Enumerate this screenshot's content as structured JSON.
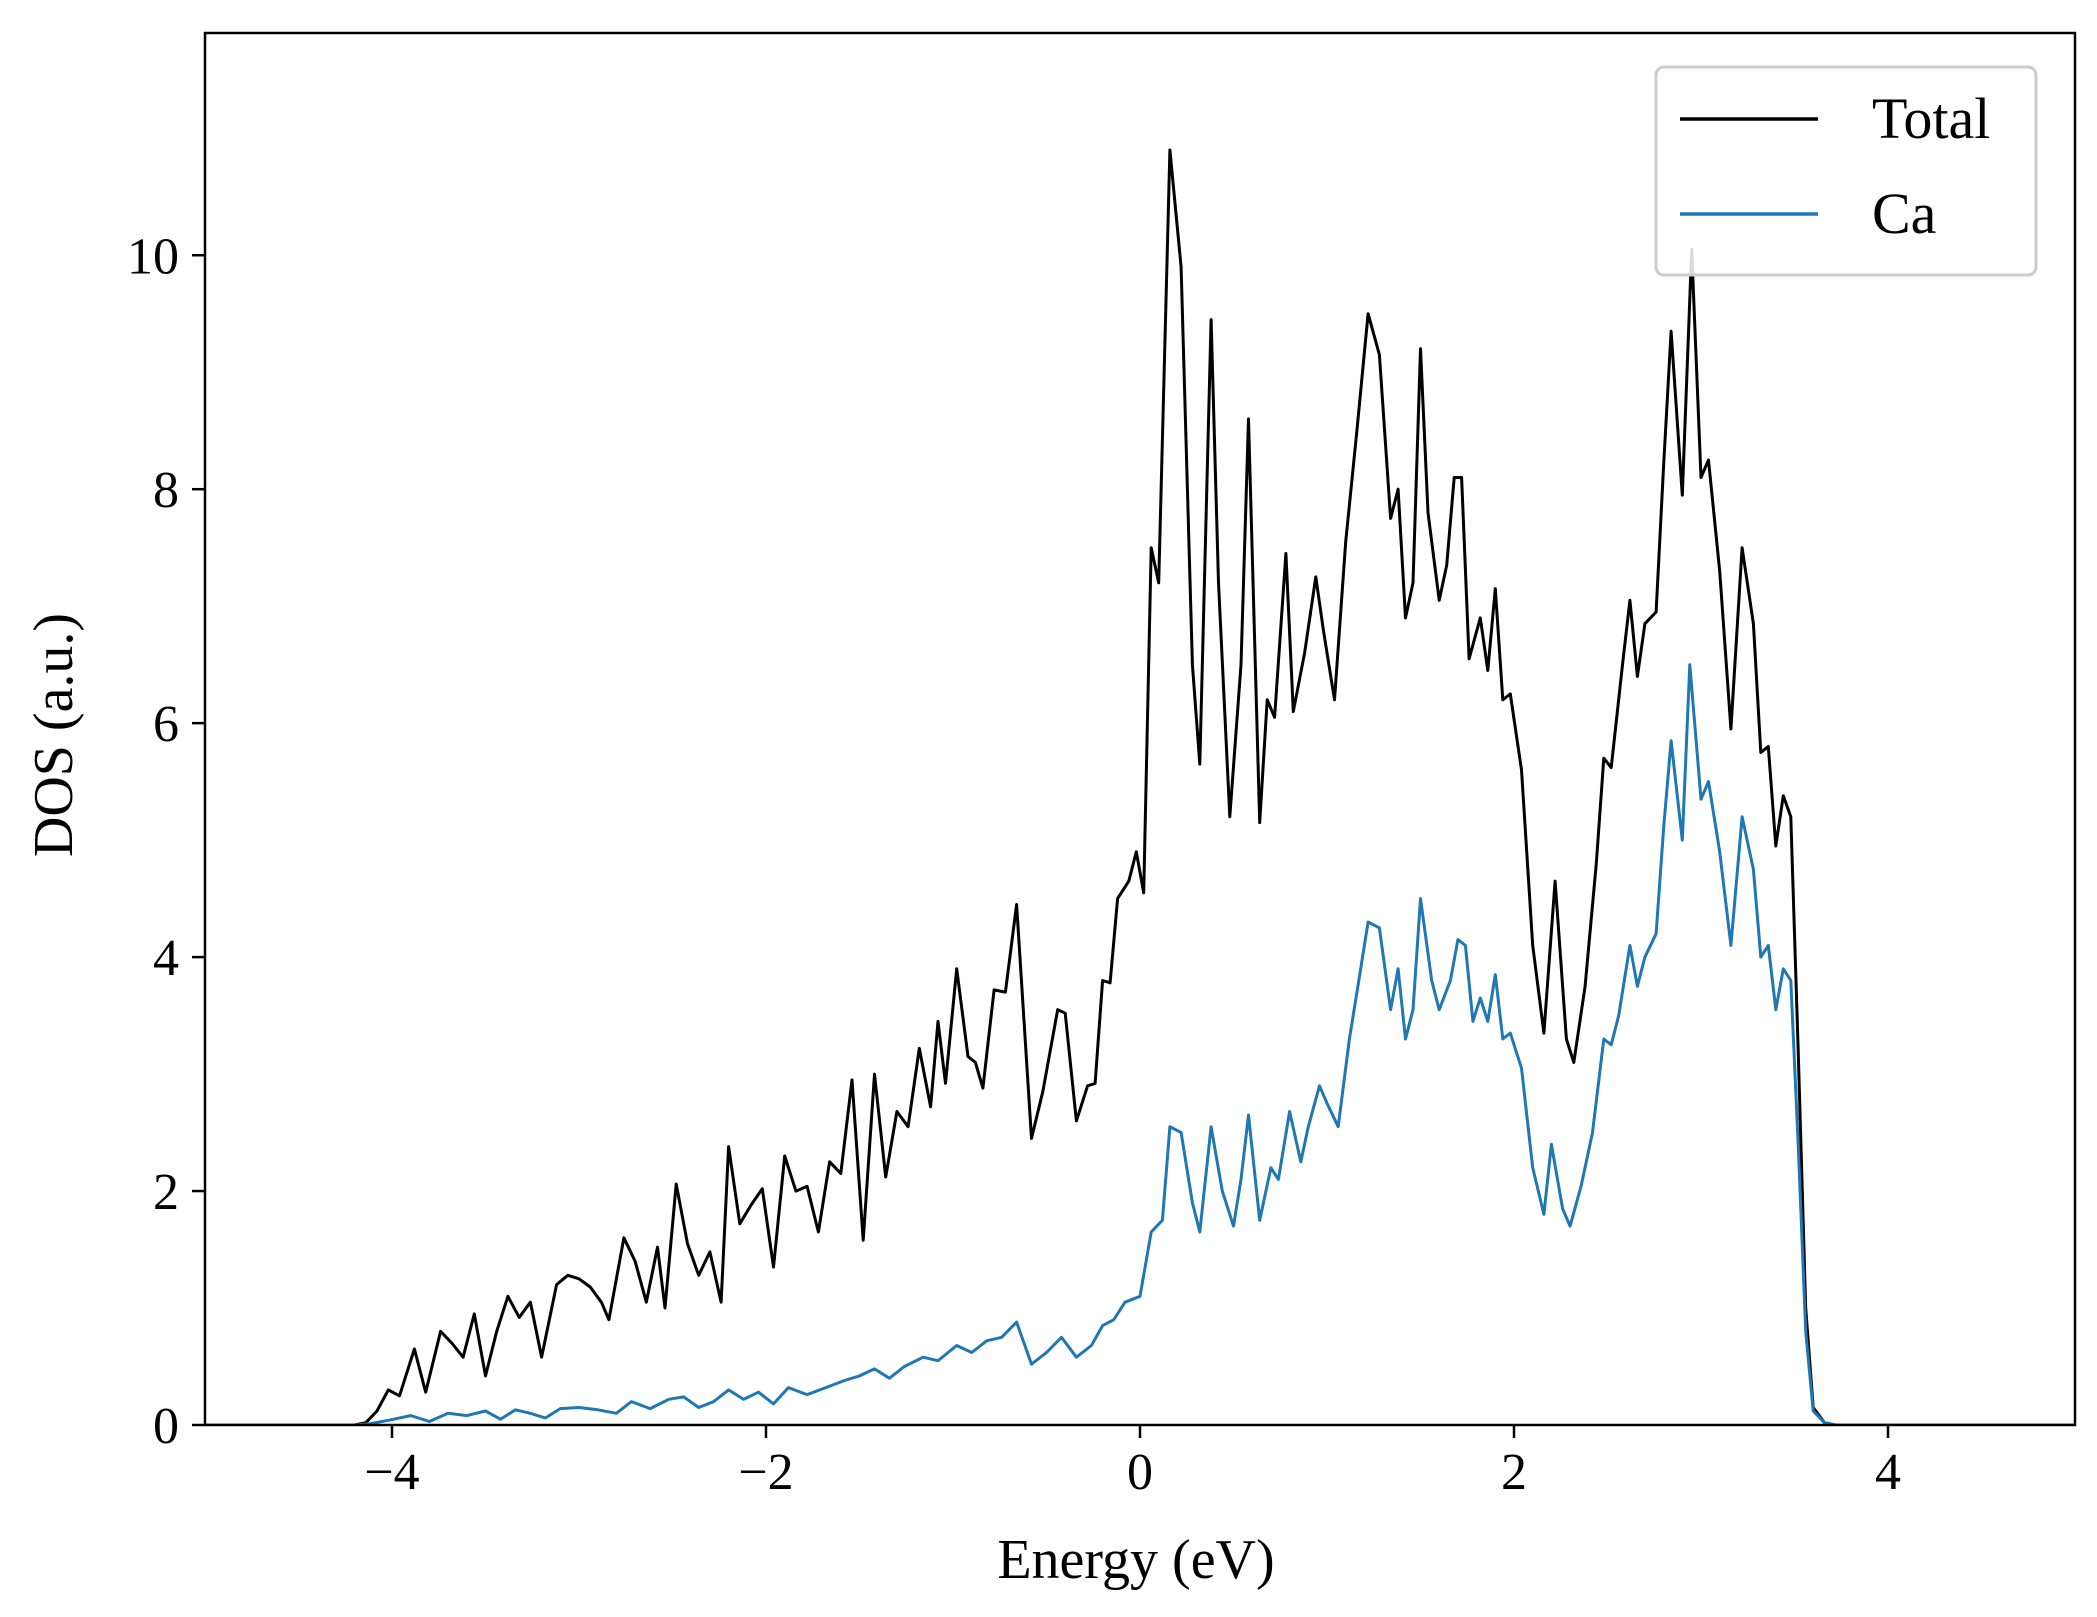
{
  "chart_data": {
    "type": "line",
    "xlabel": "Energy (eV)",
    "ylabel": "DOS (a.u.)",
    "xlim": [
      -5,
      5
    ],
    "ylim": [
      0,
      11.9
    ],
    "x_ticks": [
      -4,
      -2,
      0,
      2,
      4
    ],
    "x_tick_labels": [
      "−4",
      "−2",
      "0",
      "2",
      "4"
    ],
    "y_ticks": [
      0,
      2,
      4,
      6,
      8,
      10
    ],
    "y_tick_labels": [
      "0",
      "2",
      "4",
      "6",
      "8",
      "10"
    ],
    "grid": false,
    "legend_position": "top-right",
    "series": [
      {
        "name": "Total",
        "color": "#000000",
        "points": [
          [
            -5.0,
            0
          ],
          [
            -4.2,
            0
          ],
          [
            -4.14,
            0.02
          ],
          [
            -4.08,
            0.12
          ],
          [
            -4.02,
            0.3
          ],
          [
            -3.96,
            0.25
          ],
          [
            -3.88,
            0.65
          ],
          [
            -3.82,
            0.28
          ],
          [
            -3.74,
            0.8
          ],
          [
            -3.68,
            0.7
          ],
          [
            -3.62,
            0.58
          ],
          [
            -3.56,
            0.95
          ],
          [
            -3.5,
            0.42
          ],
          [
            -3.44,
            0.8
          ],
          [
            -3.38,
            1.1
          ],
          [
            -3.32,
            0.92
          ],
          [
            -3.26,
            1.05
          ],
          [
            -3.2,
            0.58
          ],
          [
            -3.12,
            1.2
          ],
          [
            -3.06,
            1.28
          ],
          [
            -3.0,
            1.25
          ],
          [
            -2.94,
            1.18
          ],
          [
            -2.88,
            1.05
          ],
          [
            -2.84,
            0.9
          ],
          [
            -2.76,
            1.6
          ],
          [
            -2.7,
            1.4
          ],
          [
            -2.64,
            1.05
          ],
          [
            -2.58,
            1.52
          ],
          [
            -2.54,
            1.0
          ],
          [
            -2.48,
            2.06
          ],
          [
            -2.42,
            1.55
          ],
          [
            -2.36,
            1.28
          ],
          [
            -2.3,
            1.48
          ],
          [
            -2.24,
            1.05
          ],
          [
            -2.2,
            2.38
          ],
          [
            -2.14,
            1.72
          ],
          [
            -2.08,
            1.88
          ],
          [
            -2.02,
            2.02
          ],
          [
            -1.96,
            1.35
          ],
          [
            -1.9,
            2.3
          ],
          [
            -1.84,
            2.0
          ],
          [
            -1.78,
            2.04
          ],
          [
            -1.72,
            1.65
          ],
          [
            -1.66,
            2.25
          ],
          [
            -1.6,
            2.15
          ],
          [
            -1.54,
            2.95
          ],
          [
            -1.48,
            1.58
          ],
          [
            -1.42,
            3.0
          ],
          [
            -1.36,
            2.12
          ],
          [
            -1.3,
            2.68
          ],
          [
            -1.24,
            2.55
          ],
          [
            -1.18,
            3.22
          ],
          [
            -1.12,
            2.72
          ],
          [
            -1.08,
            3.45
          ],
          [
            -1.04,
            2.92
          ],
          [
            -0.98,
            3.9
          ],
          [
            -0.92,
            3.15
          ],
          [
            -0.88,
            3.1
          ],
          [
            -0.84,
            2.88
          ],
          [
            -0.78,
            3.72
          ],
          [
            -0.72,
            3.7
          ],
          [
            -0.66,
            4.45
          ],
          [
            -0.58,
            2.45
          ],
          [
            -0.52,
            2.85
          ],
          [
            -0.44,
            3.55
          ],
          [
            -0.4,
            3.52
          ],
          [
            -0.34,
            2.6
          ],
          [
            -0.28,
            2.9
          ],
          [
            -0.24,
            2.92
          ],
          [
            -0.2,
            3.8
          ],
          [
            -0.16,
            3.78
          ],
          [
            -0.12,
            4.5
          ],
          [
            -0.06,
            4.65
          ],
          [
            -0.02,
            4.9
          ],
          [
            0.02,
            4.55
          ],
          [
            0.06,
            7.5
          ],
          [
            0.1,
            7.2
          ],
          [
            0.16,
            10.9
          ],
          [
            0.22,
            9.9
          ],
          [
            0.28,
            6.5
          ],
          [
            0.32,
            5.65
          ],
          [
            0.38,
            9.45
          ],
          [
            0.42,
            7.2
          ],
          [
            0.48,
            5.2
          ],
          [
            0.54,
            6.5
          ],
          [
            0.58,
            8.6
          ],
          [
            0.64,
            5.15
          ],
          [
            0.68,
            6.2
          ],
          [
            0.72,
            6.05
          ],
          [
            0.78,
            7.45
          ],
          [
            0.82,
            6.1
          ],
          [
            0.88,
            6.6
          ],
          [
            0.94,
            7.25
          ],
          [
            0.98,
            6.8
          ],
          [
            1.04,
            6.2
          ],
          [
            1.1,
            7.55
          ],
          [
            1.16,
            8.5
          ],
          [
            1.22,
            9.5
          ],
          [
            1.28,
            9.15
          ],
          [
            1.34,
            7.75
          ],
          [
            1.38,
            8.0
          ],
          [
            1.42,
            6.9
          ],
          [
            1.46,
            7.2
          ],
          [
            1.5,
            9.2
          ],
          [
            1.54,
            7.8
          ],
          [
            1.6,
            7.05
          ],
          [
            1.64,
            7.35
          ],
          [
            1.68,
            8.1
          ],
          [
            1.72,
            8.1
          ],
          [
            1.76,
            6.55
          ],
          [
            1.82,
            6.9
          ],
          [
            1.86,
            6.45
          ],
          [
            1.9,
            7.15
          ],
          [
            1.94,
            6.2
          ],
          [
            1.98,
            6.25
          ],
          [
            2.04,
            5.6
          ],
          [
            2.1,
            4.1
          ],
          [
            2.16,
            3.35
          ],
          [
            2.22,
            4.65
          ],
          [
            2.28,
            3.3
          ],
          [
            2.32,
            3.1
          ],
          [
            2.38,
            3.75
          ],
          [
            2.44,
            4.8
          ],
          [
            2.48,
            5.7
          ],
          [
            2.52,
            5.62
          ],
          [
            2.58,
            6.5
          ],
          [
            2.62,
            7.05
          ],
          [
            2.66,
            6.4
          ],
          [
            2.7,
            6.85
          ],
          [
            2.76,
            6.95
          ],
          [
            2.8,
            8.2
          ],
          [
            2.84,
            9.35
          ],
          [
            2.9,
            7.95
          ],
          [
            2.95,
            10.05
          ],
          [
            3.0,
            8.1
          ],
          [
            3.04,
            8.25
          ],
          [
            3.1,
            7.3
          ],
          [
            3.16,
            5.95
          ],
          [
            3.22,
            7.5
          ],
          [
            3.28,
            6.85
          ],
          [
            3.32,
            5.75
          ],
          [
            3.36,
            5.8
          ],
          [
            3.4,
            4.95
          ],
          [
            3.44,
            5.38
          ],
          [
            3.48,
            5.2
          ],
          [
            3.52,
            3.2
          ],
          [
            3.56,
            1.0
          ],
          [
            3.6,
            0.15
          ],
          [
            3.66,
            0.02
          ],
          [
            3.72,
            0
          ],
          [
            5.0,
            0
          ]
        ]
      },
      {
        "name": "Ca",
        "color": "#1f77b4",
        "points": [
          [
            -5.0,
            0
          ],
          [
            -4.2,
            0
          ],
          [
            -4.12,
            0.01
          ],
          [
            -4.02,
            0.04
          ],
          [
            -3.9,
            0.08
          ],
          [
            -3.8,
            0.03
          ],
          [
            -3.7,
            0.1
          ],
          [
            -3.6,
            0.08
          ],
          [
            -3.5,
            0.12
          ],
          [
            -3.42,
            0.05
          ],
          [
            -3.34,
            0.13
          ],
          [
            -3.26,
            0.1
          ],
          [
            -3.18,
            0.06
          ],
          [
            -3.1,
            0.14
          ],
          [
            -3.0,
            0.15
          ],
          [
            -2.9,
            0.13
          ],
          [
            -2.8,
            0.1
          ],
          [
            -2.72,
            0.2
          ],
          [
            -2.62,
            0.14
          ],
          [
            -2.52,
            0.22
          ],
          [
            -2.44,
            0.24
          ],
          [
            -2.36,
            0.15
          ],
          [
            -2.28,
            0.2
          ],
          [
            -2.2,
            0.3
          ],
          [
            -2.12,
            0.22
          ],
          [
            -2.04,
            0.28
          ],
          [
            -1.96,
            0.18
          ],
          [
            -1.88,
            0.32
          ],
          [
            -1.78,
            0.26
          ],
          [
            -1.68,
            0.32
          ],
          [
            -1.58,
            0.38
          ],
          [
            -1.5,
            0.42
          ],
          [
            -1.42,
            0.48
          ],
          [
            -1.34,
            0.4
          ],
          [
            -1.26,
            0.5
          ],
          [
            -1.16,
            0.58
          ],
          [
            -1.08,
            0.55
          ],
          [
            -0.98,
            0.68
          ],
          [
            -0.9,
            0.62
          ],
          [
            -0.82,
            0.72
          ],
          [
            -0.74,
            0.75
          ],
          [
            -0.66,
            0.88
          ],
          [
            -0.58,
            0.52
          ],
          [
            -0.5,
            0.62
          ],
          [
            -0.42,
            0.75
          ],
          [
            -0.34,
            0.58
          ],
          [
            -0.26,
            0.68
          ],
          [
            -0.2,
            0.85
          ],
          [
            -0.14,
            0.9
          ],
          [
            -0.08,
            1.05
          ],
          [
            0.0,
            1.1
          ],
          [
            0.06,
            1.65
          ],
          [
            0.12,
            1.75
          ],
          [
            0.16,
            2.55
          ],
          [
            0.22,
            2.5
          ],
          [
            0.28,
            1.9
          ],
          [
            0.32,
            1.65
          ],
          [
            0.38,
            2.55
          ],
          [
            0.44,
            2.0
          ],
          [
            0.5,
            1.7
          ],
          [
            0.54,
            2.1
          ],
          [
            0.58,
            2.65
          ],
          [
            0.64,
            1.75
          ],
          [
            0.7,
            2.2
          ],
          [
            0.74,
            2.1
          ],
          [
            0.8,
            2.68
          ],
          [
            0.86,
            2.25
          ],
          [
            0.9,
            2.55
          ],
          [
            0.96,
            2.9
          ],
          [
            1.0,
            2.75
          ],
          [
            1.06,
            2.55
          ],
          [
            1.12,
            3.3
          ],
          [
            1.18,
            3.9
          ],
          [
            1.22,
            4.3
          ],
          [
            1.28,
            4.25
          ],
          [
            1.34,
            3.55
          ],
          [
            1.38,
            3.9
          ],
          [
            1.42,
            3.3
          ],
          [
            1.46,
            3.55
          ],
          [
            1.5,
            4.5
          ],
          [
            1.56,
            3.8
          ],
          [
            1.6,
            3.55
          ],
          [
            1.66,
            3.8
          ],
          [
            1.7,
            4.15
          ],
          [
            1.74,
            4.1
          ],
          [
            1.78,
            3.45
          ],
          [
            1.82,
            3.65
          ],
          [
            1.86,
            3.45
          ],
          [
            1.9,
            3.85
          ],
          [
            1.94,
            3.3
          ],
          [
            1.98,
            3.35
          ],
          [
            2.04,
            3.05
          ],
          [
            2.1,
            2.2
          ],
          [
            2.16,
            1.8
          ],
          [
            2.2,
            2.4
          ],
          [
            2.26,
            1.85
          ],
          [
            2.3,
            1.7
          ],
          [
            2.36,
            2.05
          ],
          [
            2.42,
            2.5
          ],
          [
            2.48,
            3.3
          ],
          [
            2.52,
            3.25
          ],
          [
            2.56,
            3.5
          ],
          [
            2.62,
            4.1
          ],
          [
            2.66,
            3.75
          ],
          [
            2.7,
            4.0
          ],
          [
            2.76,
            4.2
          ],
          [
            2.8,
            5.1
          ],
          [
            2.84,
            5.85
          ],
          [
            2.9,
            5.0
          ],
          [
            2.94,
            6.5
          ],
          [
            3.0,
            5.35
          ],
          [
            3.04,
            5.5
          ],
          [
            3.1,
            4.9
          ],
          [
            3.16,
            4.1
          ],
          [
            3.22,
            5.2
          ],
          [
            3.28,
            4.75
          ],
          [
            3.32,
            4.0
          ],
          [
            3.36,
            4.1
          ],
          [
            3.4,
            3.55
          ],
          [
            3.44,
            3.9
          ],
          [
            3.48,
            3.8
          ],
          [
            3.52,
            2.4
          ],
          [
            3.56,
            0.8
          ],
          [
            3.6,
            0.12
          ],
          [
            3.66,
            0.02
          ],
          [
            3.72,
            0
          ],
          [
            5.0,
            0
          ]
        ]
      }
    ]
  }
}
